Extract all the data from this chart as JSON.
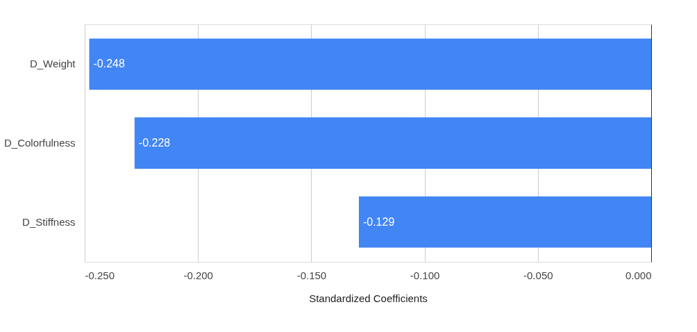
{
  "chart_data": {
    "type": "bar",
    "orientation": "horizontal",
    "xlabel": "Standardized Coefficients",
    "categories": [
      "D_Weight",
      "D_Colorfulness",
      "D_Stiffness"
    ],
    "values": [
      -0.248,
      -0.228,
      -0.129
    ],
    "color": "#4285f4",
    "xlim": [
      -0.25,
      0
    ],
    "xticks": [
      {
        "value": -0.25,
        "label": "-0.250"
      },
      {
        "value": -0.2,
        "label": "-0.200"
      },
      {
        "value": -0.15,
        "label": "-0.150"
      },
      {
        "value": -0.1,
        "label": "-0.100"
      },
      {
        "value": -0.05,
        "label": "-0.050"
      },
      {
        "value": 0,
        "label": "0.000"
      }
    ],
    "grid": "x",
    "data_labels": true
  }
}
